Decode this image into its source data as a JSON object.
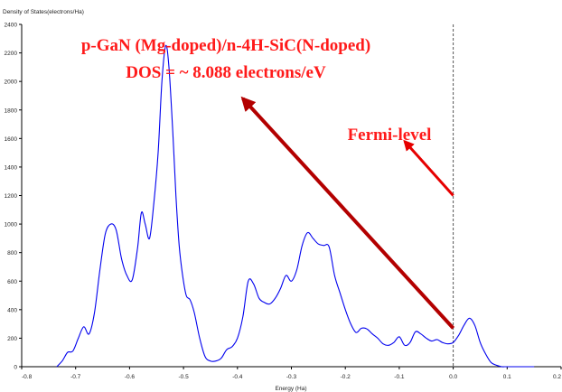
{
  "chart_data": {
    "type": "line",
    "title": "",
    "xlabel": "Energy (Ha)",
    "ylabel": "Density of States(electrons/Ha)",
    "xlim": [
      -0.8,
      0.2
    ],
    "ylim": [
      0,
      2400
    ],
    "x_ticks": [
      -0.8,
      -0.7,
      -0.6,
      -0.5,
      -0.4,
      -0.3,
      -0.2,
      -0.1,
      0.0,
      0.1,
      0.2
    ],
    "x_tick_labels": [
      "-0.8",
      "-0.7",
      "-0.6",
      "-0.5",
      "-0.4",
      "-0.3",
      "-0.2",
      "-0.1",
      "0.0",
      "0.1",
      "0.2"
    ],
    "y_ticks": [
      0,
      200,
      400,
      600,
      800,
      1000,
      1200,
      1400,
      1600,
      1800,
      2000,
      2200,
      2400
    ],
    "y_tick_labels": [
      "0",
      "200",
      "400",
      "600",
      "800",
      "1000",
      "1200",
      "1400",
      "1600",
      "1800",
      "2000",
      "2200",
      "2400"
    ],
    "grid": false,
    "series": [
      {
        "color": "#0000ee",
        "x": [
          -0.735,
          -0.725,
          -0.715,
          -0.705,
          -0.695,
          -0.685,
          -0.675,
          -0.665,
          -0.655,
          -0.645,
          -0.635,
          -0.625,
          -0.615,
          -0.605,
          -0.595,
          -0.585,
          -0.578,
          -0.571,
          -0.563,
          -0.555,
          -0.547,
          -0.54,
          -0.533,
          -0.527,
          -0.52,
          -0.514,
          -0.508,
          -0.502,
          -0.495,
          -0.488,
          -0.48,
          -0.47,
          -0.46,
          -0.45,
          -0.44,
          -0.43,
          -0.42,
          -0.41,
          -0.4,
          -0.39,
          -0.38,
          -0.37,
          -0.36,
          -0.35,
          -0.34,
          -0.33,
          -0.32,
          -0.31,
          -0.3,
          -0.29,
          -0.28,
          -0.27,
          -0.26,
          -0.25,
          -0.24,
          -0.23,
          -0.22,
          -0.21,
          -0.2,
          -0.19,
          -0.18,
          -0.17,
          -0.16,
          -0.15,
          -0.14,
          -0.13,
          -0.12,
          -0.11,
          -0.1,
          -0.09,
          -0.08,
          -0.07,
          -0.06,
          -0.05,
          -0.04,
          -0.03,
          -0.02,
          -0.01,
          0.0,
          0.01,
          0.02,
          0.03,
          0.04,
          0.05,
          0.06,
          0.07,
          0.08,
          0.09,
          0.095,
          0.1,
          0.105,
          0.11,
          0.12,
          0.13,
          0.14,
          0.15
        ],
        "y": [
          0,
          40,
          100,
          110,
          200,
          280,
          230,
          380,
          680,
          930,
          1000,
          960,
          760,
          640,
          610,
          840,
          1080,
          1000,
          900,
          1150,
          1500,
          2000,
          2250,
          2100,
          1650,
          1200,
          850,
          650,
          500,
          470,
          380,
          200,
          70,
          40,
          40,
          60,
          120,
          140,
          200,
          350,
          600,
          580,
          480,
          450,
          440,
          480,
          550,
          640,
          600,
          680,
          850,
          940,
          900,
          860,
          850,
          840,
          640,
          520,
          400,
          300,
          240,
          270,
          265,
          230,
          200,
          160,
          150,
          170,
          210,
          150,
          170,
          245,
          230,
          200,
          180,
          190,
          170,
          160,
          170,
          220,
          290,
          340,
          290,
          170,
          90,
          30,
          10,
          0,
          0,
          0,
          0,
          0,
          0,
          0,
          0,
          0
        ]
      }
    ],
    "reference_line": {
      "x": 0.0,
      "style": "dashed",
      "color": "#555555"
    },
    "annotations": [
      {
        "text": "p-GaN (Mg-doped)/n-4H-SiC(N-doped)",
        "color": "#ff1a1a"
      },
      {
        "text": "DOS = ~ 8.088 electrons/eV",
        "color": "#ff1a1a"
      },
      {
        "text": "Fermi-level",
        "color": "#ff1a1a"
      }
    ],
    "arrows": [
      {
        "from": [
          0.0,
          270
        ],
        "to": [
          -0.39,
          1880
        ],
        "color": "#b30000"
      },
      {
        "from": [
          0.0,
          1200
        ],
        "to": [
          -0.09,
          1580
        ],
        "color": "#e60000"
      }
    ]
  }
}
